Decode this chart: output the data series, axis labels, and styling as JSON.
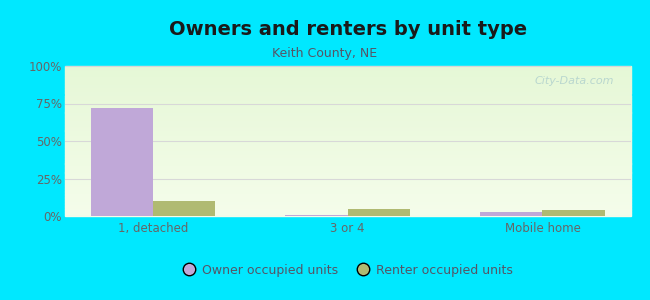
{
  "title": "Owners and renters by unit type",
  "subtitle": "Keith County, NE",
  "categories": [
    "1, detached",
    "3 or 4",
    "Mobile home"
  ],
  "owner_values": [
    72,
    1,
    3
  ],
  "renter_values": [
    10,
    5,
    4
  ],
  "owner_color": "#c0a8d8",
  "renter_color": "#b0ba72",
  "background_outer": "#00e8ff",
  "grid_color": "#d8d8d8",
  "title_fontsize": 14,
  "subtitle_fontsize": 9,
  "tick_fontsize": 8.5,
  "legend_fontsize": 9,
  "ylim": [
    0,
    100
  ],
  "yticks": [
    0,
    25,
    50,
    75,
    100
  ],
  "ytick_labels": [
    "0%",
    "25%",
    "50%",
    "75%",
    "100%"
  ],
  "bar_width": 0.32,
  "watermark": "City-Data.com"
}
